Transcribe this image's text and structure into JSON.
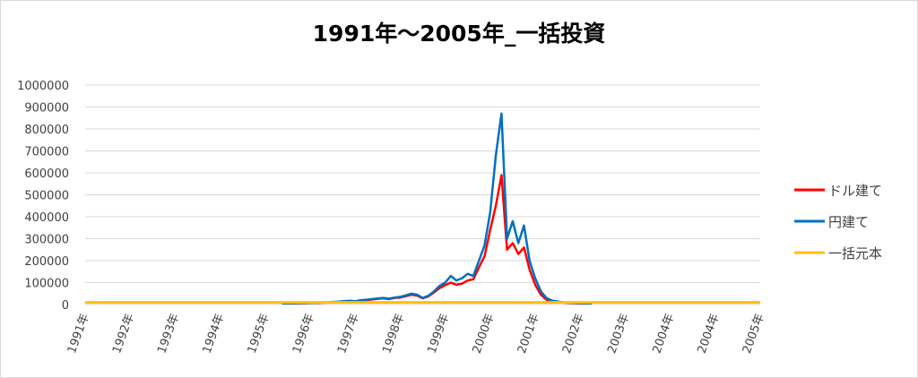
{
  "chart_data": {
    "type": "line",
    "title": "1991年～2005年_一括投資",
    "categories": [
      "1991年",
      null,
      null,
      null,
      null,
      null,
      null,
      null,
      "1992年",
      null,
      null,
      null,
      null,
      null,
      null,
      null,
      "1993年",
      null,
      null,
      null,
      null,
      null,
      null,
      null,
      "1994年",
      null,
      null,
      null,
      null,
      null,
      null,
      null,
      "1995年",
      null,
      null,
      null,
      null,
      null,
      null,
      null,
      "1996年",
      null,
      null,
      null,
      null,
      null,
      null,
      null,
      "1997年",
      null,
      null,
      null,
      null,
      null,
      null,
      null,
      "1998年",
      null,
      null,
      null,
      null,
      null,
      null,
      null,
      "1999年",
      null,
      null,
      null,
      null,
      null,
      null,
      null,
      "2000年",
      null,
      null,
      null,
      null,
      null,
      null,
      null,
      "2001年",
      null,
      null,
      null,
      null,
      null,
      null,
      null,
      "2002年",
      null,
      null,
      null,
      null,
      null,
      null,
      null,
      "2003年",
      null,
      null,
      null,
      null,
      null,
      null,
      null,
      "2004年",
      null,
      null,
      null,
      null,
      null,
      null,
      null,
      "2004年",
      null,
      null,
      null,
      null,
      null,
      null,
      null,
      "2005年"
    ],
    "series": [
      {
        "name": "ドル建て",
        "color": "#ff0000",
        "values": [
          null,
          null,
          null,
          null,
          null,
          null,
          null,
          null,
          null,
          null,
          null,
          null,
          null,
          null,
          null,
          null,
          null,
          null,
          null,
          null,
          null,
          null,
          null,
          null,
          null,
          null,
          null,
          null,
          null,
          null,
          null,
          null,
          null,
          null,
          null,
          5000,
          5000,
          5000,
          6000,
          6000,
          7000,
          7000,
          8000,
          9000,
          11000,
          12000,
          14000,
          16000,
          14000,
          18000,
          20000,
          23000,
          26000,
          28000,
          25000,
          30000,
          32000,
          38000,
          45000,
          41000,
          28000,
          37000,
          55000,
          75000,
          88000,
          100000,
          90000,
          95000,
          110000,
          115000,
          170000,
          220000,
          340000,
          450000,
          590000,
          250000,
          280000,
          230000,
          260000,
          160000,
          90000,
          45000,
          22000,
          15000,
          12000,
          9000,
          7000,
          6000,
          5000,
          5000,
          5000,
          null,
          null,
          null,
          null,
          null,
          null,
          null,
          null,
          null,
          null,
          null,
          null,
          null,
          null,
          null,
          null,
          null,
          null,
          null,
          null,
          null,
          null,
          null,
          null,
          null,
          null,
          null,
          null,
          null,
          null
        ]
      },
      {
        "name": "円建て",
        "color": "#0070c0",
        "values": [
          null,
          null,
          null,
          null,
          null,
          null,
          null,
          null,
          null,
          null,
          null,
          null,
          null,
          null,
          null,
          null,
          null,
          null,
          null,
          null,
          null,
          null,
          null,
          null,
          null,
          null,
          null,
          null,
          null,
          null,
          null,
          null,
          null,
          null,
          null,
          5000,
          5000,
          6000,
          6000,
          7000,
          7000,
          8000,
          9000,
          10000,
          12000,
          13000,
          15000,
          17000,
          15000,
          20000,
          22000,
          25000,
          28000,
          30000,
          27000,
          32000,
          35000,
          42000,
          50000,
          45000,
          30000,
          40000,
          60000,
          85000,
          100000,
          130000,
          110000,
          120000,
          140000,
          130000,
          200000,
          270000,
          420000,
          680000,
          870000,
          300000,
          380000,
          280000,
          360000,
          200000,
          120000,
          60000,
          30000,
          18000,
          14000,
          10000,
          8000,
          7000,
          6000,
          6000,
          5000,
          null,
          null,
          null,
          null,
          null,
          null,
          null,
          null,
          null,
          null,
          null,
          null,
          null,
          null,
          null,
          null,
          null,
          null,
          null,
          null,
          null,
          null,
          null,
          null,
          null,
          null,
          null,
          null,
          null,
          null
        ]
      },
      {
        "name": "一括元本",
        "color": "#ffc000",
        "values": [
          10000,
          10000,
          10000,
          10000,
          10000,
          10000,
          10000,
          10000,
          10000,
          10000,
          10000,
          10000,
          10000,
          10000,
          10000,
          10000,
          10000,
          10000,
          10000,
          10000,
          10000,
          10000,
          10000,
          10000,
          10000,
          10000,
          10000,
          10000,
          10000,
          10000,
          10000,
          10000,
          10000,
          10000,
          10000,
          10000,
          10000,
          10000,
          10000,
          10000,
          10000,
          10000,
          10000,
          10000,
          10000,
          10000,
          10000,
          10000,
          10000,
          10000,
          10000,
          10000,
          10000,
          10000,
          10000,
          10000,
          10000,
          10000,
          10000,
          10000,
          10000,
          10000,
          10000,
          10000,
          10000,
          10000,
          10000,
          10000,
          10000,
          10000,
          10000,
          10000,
          10000,
          10000,
          10000,
          10000,
          10000,
          10000,
          10000,
          10000,
          10000,
          10000,
          10000,
          10000,
          10000,
          10000,
          10000,
          10000,
          10000,
          10000,
          10000,
          10000,
          10000,
          10000,
          10000,
          10000,
          10000,
          10000,
          10000,
          10000,
          10000,
          10000,
          10000,
          10000,
          10000,
          10000,
          10000,
          10000,
          10000,
          10000,
          10000,
          10000,
          10000,
          10000,
          10000,
          10000,
          10000,
          10000,
          10000,
          10000,
          10000
        ]
      }
    ],
    "ylim": [
      0,
      1000000
    ],
    "yticks": [
      0,
      100000,
      200000,
      300000,
      400000,
      500000,
      600000,
      700000,
      800000,
      900000,
      1000000
    ],
    "grid": true,
    "legend": "right"
  }
}
